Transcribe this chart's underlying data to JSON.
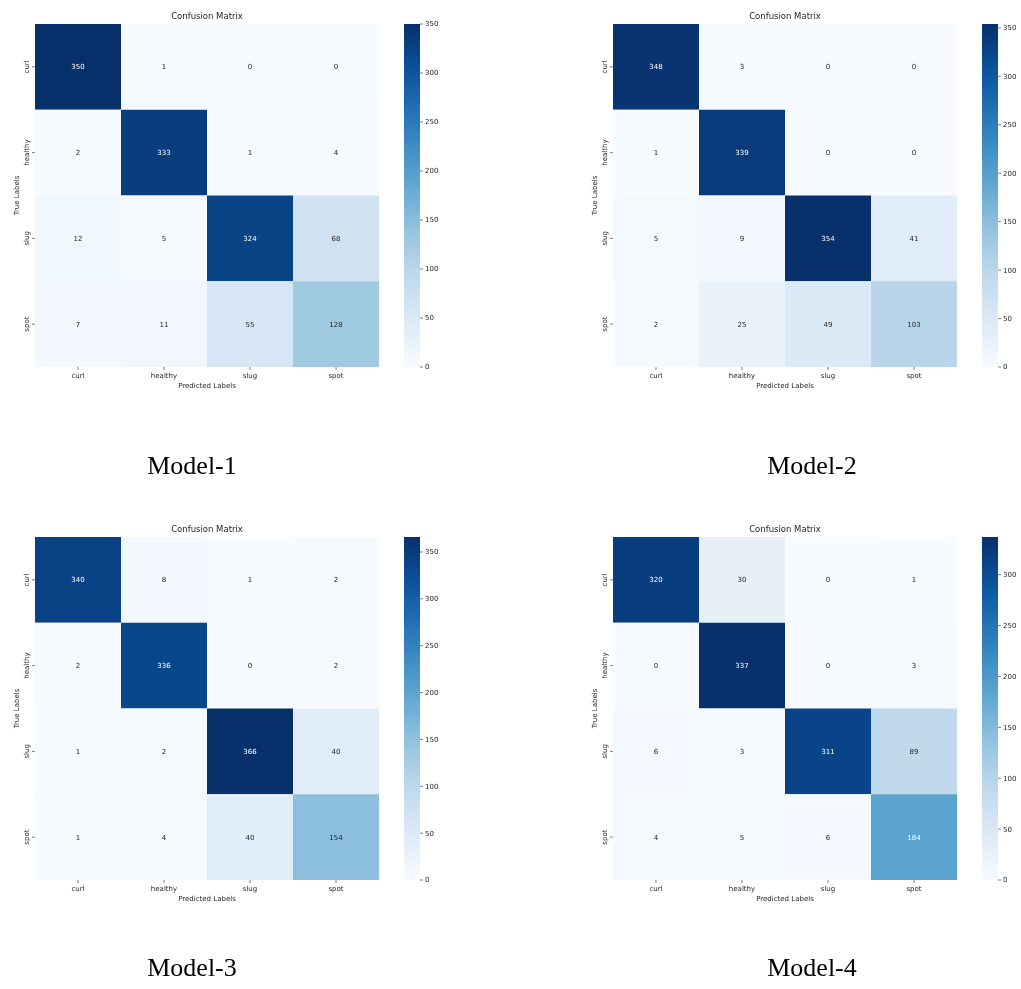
{
  "chart_data": [
    {
      "type": "heatmap",
      "title": "Confusion Matrix",
      "xlabel": "Predicted Labels",
      "ylabel": "True Labels",
      "categories": [
        "curl",
        "healthy",
        "slug",
        "spot"
      ],
      "y_categories": [
        "curl",
        "healthy",
        "slug",
        "spot"
      ],
      "cells": [
        [
          350,
          1,
          0,
          0
        ],
        [
          2,
          333,
          1,
          4
        ],
        [
          12,
          5,
          324,
          68
        ],
        [
          7,
          11,
          55,
          128
        ]
      ],
      "clim": [
        0,
        350
      ],
      "cticks": [
        0,
        50,
        100,
        150,
        200,
        250,
        300,
        350
      ],
      "data_labels": true,
      "annotations": [
        "Model-1"
      ]
    },
    {
      "type": "heatmap",
      "title": "Confusion Matrix",
      "xlabel": "Predicted Labels",
      "ylabel": "True Labels",
      "categories": [
        "curl",
        "healthy",
        "slug",
        "spot"
      ],
      "y_categories": [
        "curl",
        "healthy",
        "slug",
        "spot"
      ],
      "cells": [
        [
          348,
          3,
          0,
          0
        ],
        [
          1,
          339,
          0,
          0
        ],
        [
          5,
          9,
          354,
          41
        ],
        [
          2,
          25,
          49,
          103
        ]
      ],
      "clim": [
        0,
        354
      ],
      "cticks": [
        0,
        50,
        100,
        150,
        200,
        250,
        300,
        350
      ],
      "data_labels": true,
      "annotations": [
        "Model-2"
      ]
    },
    {
      "type": "heatmap",
      "title": "Confusion Matrix",
      "xlabel": "Predicted Labels",
      "ylabel": "True Labels",
      "categories": [
        "curl",
        "healthy",
        "slug",
        "spot"
      ],
      "y_categories": [
        "curl",
        "healthy",
        "slug",
        "spot"
      ],
      "cells": [
        [
          340,
          8,
          1,
          2
        ],
        [
          2,
          336,
          0,
          2
        ],
        [
          1,
          2,
          366,
          40
        ],
        [
          1,
          4,
          40,
          154
        ]
      ],
      "clim": [
        0,
        366
      ],
      "cticks": [
        0,
        50,
        100,
        150,
        200,
        250,
        300,
        350
      ],
      "data_labels": true,
      "annotations": [
        "Model-3"
      ]
    },
    {
      "type": "heatmap",
      "title": "Confusion Matrix",
      "xlabel": "Predicted Labels",
      "ylabel": "True Labels",
      "categories": [
        "curl",
        "healthy",
        "slug",
        "spot"
      ],
      "y_categories": [
        "curl",
        "healthy",
        "slug",
        "spot"
      ],
      "cells": [
        [
          320,
          30,
          0,
          1
        ],
        [
          0,
          337,
          0,
          3
        ],
        [
          6,
          3,
          311,
          89
        ],
        [
          4,
          5,
          6,
          184
        ]
      ],
      "clim": [
        0,
        337
      ],
      "cticks": [
        0,
        50,
        100,
        150,
        200,
        250,
        300
      ],
      "data_labels": true,
      "annotations": [
        "Model-4"
      ]
    }
  ]
}
